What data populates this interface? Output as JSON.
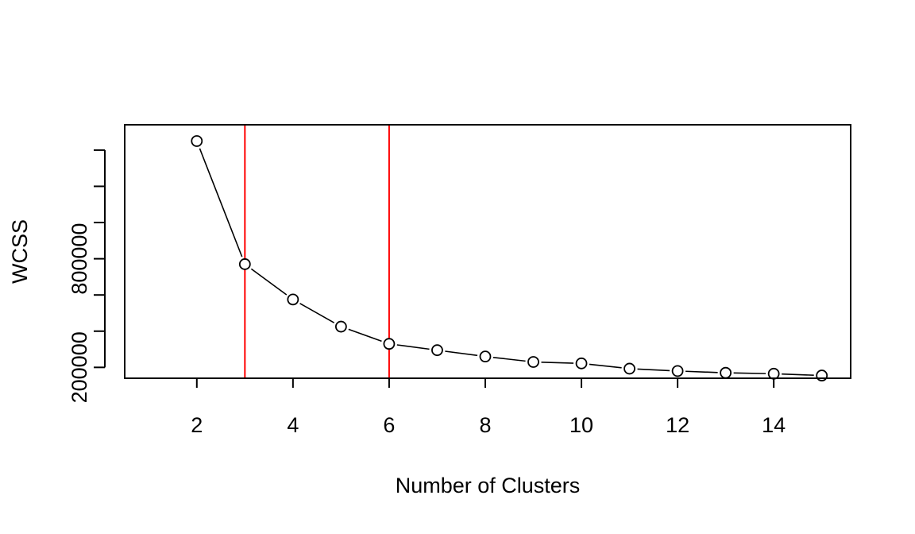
{
  "chart_data": {
    "type": "line",
    "title": "",
    "xlabel": "Number of Clusters",
    "ylabel": "WCSS",
    "xlim": [
      0.5,
      15.6
    ],
    "ylim": [
      140000,
      1540000
    ],
    "x_ticks": [
      2,
      4,
      6,
      8,
      10,
      12,
      14
    ],
    "x_tick_labels": [
      "2",
      "4",
      "6",
      "8",
      "10",
      "12",
      "14"
    ],
    "y_ticks": [
      200000,
      400000,
      600000,
      800000,
      1000000,
      1200000,
      1400000
    ],
    "y_tick_labels": [
      "200000",
      "",
      "",
      "800000",
      "",
      "",
      ""
    ],
    "series": [
      {
        "x": [
          2,
          3,
          4,
          5,
          6,
          7,
          8,
          9,
          10,
          11,
          12,
          13,
          14,
          15
        ],
        "y": [
          1450000,
          770000,
          575000,
          425000,
          330000,
          295000,
          260000,
          230000,
          222000,
          193000,
          180000,
          170000,
          165000,
          155000
        ],
        "line_style": "solid",
        "marker": "open-circle",
        "color": "#000000"
      }
    ],
    "vlines": [
      {
        "x": 3,
        "color": "#ff0000"
      },
      {
        "x": 6,
        "color": "#ff0000"
      }
    ],
    "grid": false,
    "legend": "none"
  }
}
